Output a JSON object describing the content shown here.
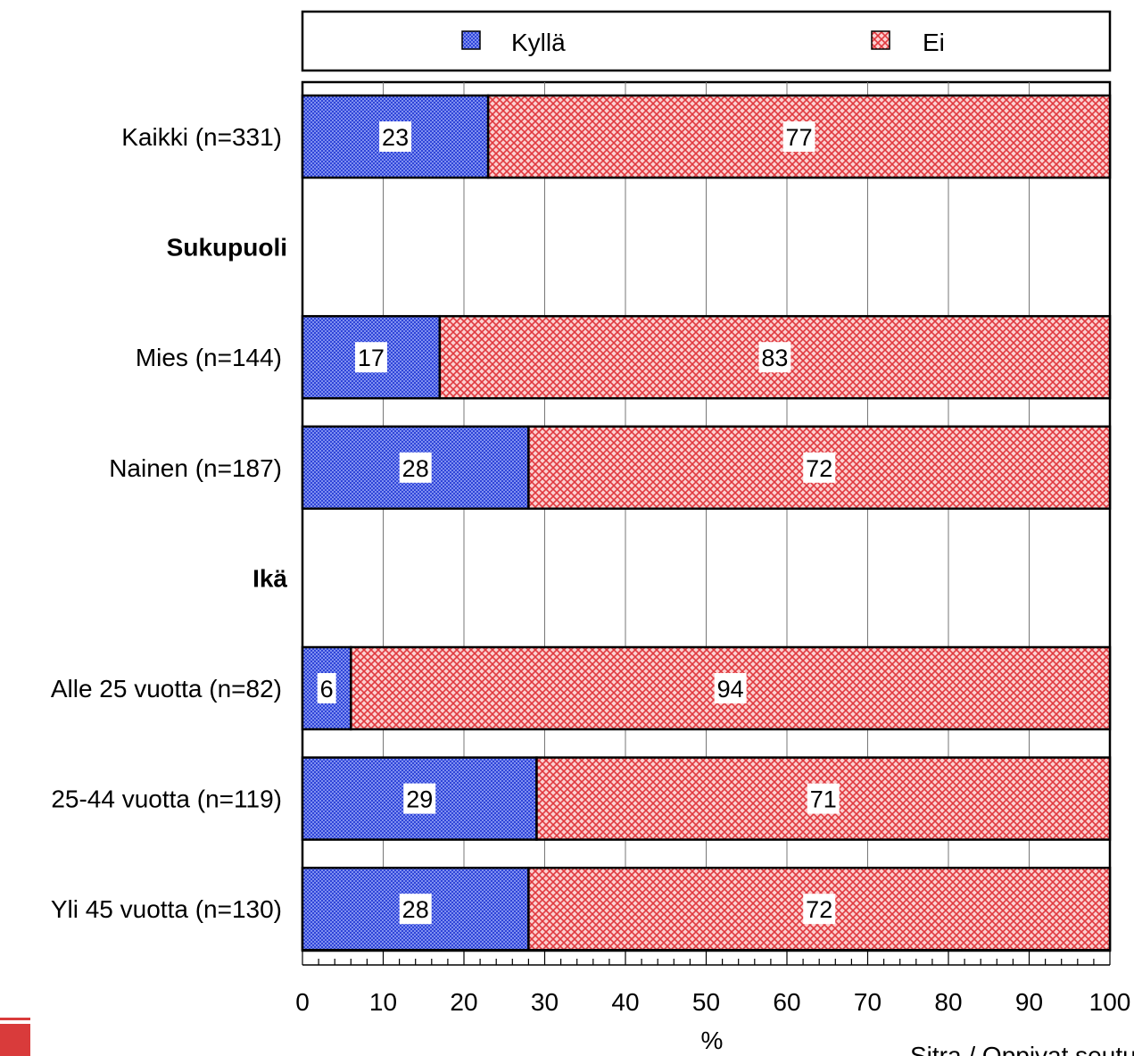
{
  "chart_data": {
    "type": "bar",
    "orientation": "horizontal",
    "stacked": true,
    "categories": [
      "Kaikki (n=331)",
      "Sukupuoli",
      "Mies (n=144)",
      "Nainen (n=187)",
      "Ikä",
      "Alle 25 vuotta (n=82)",
      "25-44 vuotta (n=119)",
      "Yli 45 vuotta (n=130)"
    ],
    "group_headers": [
      "Sukupuoli",
      "Ikä"
    ],
    "series": [
      {
        "name": "Kyllä",
        "values": [
          23,
          null,
          17,
          28,
          null,
          6,
          29,
          28
        ],
        "color": "#5a6ee6"
      },
      {
        "name": "Ei",
        "values": [
          77,
          null,
          83,
          72,
          null,
          94,
          71,
          72
        ],
        "color": "#f07a7a"
      }
    ],
    "xlabel": "%",
    "ylabel": "",
    "xlim": [
      0,
      100
    ],
    "xticks": [
      0,
      10,
      20,
      30,
      40,
      50,
      60,
      70,
      80,
      90,
      100
    ],
    "grid": true,
    "legend_position": "top",
    "source_note": "Sitra / Oppivat seutu"
  }
}
